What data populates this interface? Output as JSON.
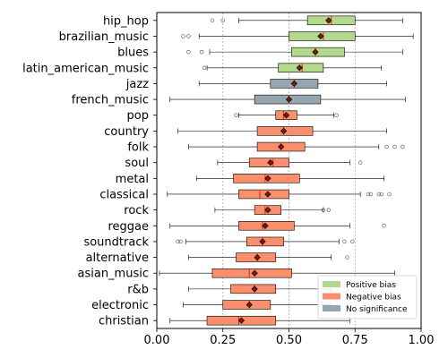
{
  "chart_data": {
    "type": "boxplot",
    "orientation": "horizontal",
    "title": "",
    "xlabel": "",
    "ylabel": "",
    "xlim": [
      0,
      1
    ],
    "xticks": [
      0,
      0.25,
      0.5,
      0.75,
      1
    ],
    "xtick_labels": [
      "0.00",
      "0.25",
      "0.50",
      "0.75",
      "1.00"
    ],
    "reference_lines": [
      0.25,
      0.5,
      0.75
    ],
    "legend": {
      "placement": "lower-right",
      "entries": [
        {
          "label": "Positive bias",
          "color": "#b3d98c"
        },
        {
          "label": "Negative bias",
          "color": "#fa8f6e"
        },
        {
          "label": "No significance",
          "color": "#95a6b0"
        }
      ]
    },
    "colors": {
      "positive": "#b3d98c",
      "negative": "#fa8f6e",
      "none": "#95a6b0",
      "median": "#d62728",
      "mean": "#7a1a0e"
    },
    "categories": [
      {
        "name": "hip_hop",
        "bias": "positive",
        "whisker_low": 0.31,
        "q1": 0.57,
        "median": 0.66,
        "q3": 0.75,
        "whisker_high": 0.93,
        "mean": 0.65,
        "outliers": [
          0.21,
          0.25
        ]
      },
      {
        "name": "brazilian_music",
        "bias": "positive",
        "whisker_low": 0.16,
        "q1": 0.5,
        "median": 0.63,
        "q3": 0.75,
        "whisker_high": 0.97,
        "mean": 0.62,
        "outliers": [
          0.1,
          0.12
        ]
      },
      {
        "name": "blues",
        "bias": "positive",
        "whisker_low": 0.2,
        "q1": 0.51,
        "median": 0.6,
        "q3": 0.71,
        "whisker_high": 0.93,
        "mean": 0.6,
        "outliers": [
          0.12,
          0.17
        ]
      },
      {
        "name": "latin_american_music",
        "bias": "positive",
        "whisker_low": 0.19,
        "q1": 0.46,
        "median": 0.55,
        "q3": 0.63,
        "whisker_high": 0.85,
        "mean": 0.54,
        "outliers": [
          0.18
        ]
      },
      {
        "name": "jazz",
        "bias": "none",
        "whisker_low": 0.16,
        "q1": 0.43,
        "median": 0.52,
        "q3": 0.61,
        "whisker_high": 0.87,
        "mean": 0.52,
        "outliers": []
      },
      {
        "name": "french_music",
        "bias": "none",
        "whisker_low": 0.05,
        "q1": 0.37,
        "median": 0.5,
        "q3": 0.62,
        "whisker_high": 0.94,
        "mean": 0.5,
        "outliers": []
      },
      {
        "name": "pop",
        "bias": "negative",
        "whisker_low": 0.31,
        "q1": 0.45,
        "median": 0.48,
        "q3": 0.53,
        "whisker_high": 0.67,
        "mean": 0.49,
        "outliers": [
          0.3,
          0.68
        ]
      },
      {
        "name": "country",
        "bias": "negative",
        "whisker_low": 0.08,
        "q1": 0.38,
        "median": 0.48,
        "q3": 0.59,
        "whisker_high": 0.87,
        "mean": 0.48,
        "outliers": []
      },
      {
        "name": "folk",
        "bias": "negative",
        "whisker_low": 0.12,
        "q1": 0.38,
        "median": 0.47,
        "q3": 0.56,
        "whisker_high": 0.84,
        "mean": 0.47,
        "outliers": [
          0.87,
          0.9,
          0.93
        ]
      },
      {
        "name": "soul",
        "bias": "negative",
        "whisker_low": 0.23,
        "q1": 0.35,
        "median": 0.44,
        "q3": 0.5,
        "whisker_high": 0.73,
        "mean": 0.43,
        "outliers": [
          0.77
        ]
      },
      {
        "name": "metal",
        "bias": "negative",
        "whisker_low": 0.15,
        "q1": 0.29,
        "median": 0.41,
        "q3": 0.54,
        "whisker_high": 0.86,
        "mean": 0.42,
        "outliers": []
      },
      {
        "name": "classical",
        "bias": "negative",
        "whisker_low": 0.04,
        "q1": 0.31,
        "median": 0.39,
        "q3": 0.5,
        "whisker_high": 0.77,
        "mean": 0.42,
        "outliers": [
          0.8,
          0.81,
          0.84,
          0.85,
          0.88
        ]
      },
      {
        "name": "rock",
        "bias": "negative",
        "whisker_low": 0.22,
        "q1": 0.37,
        "median": 0.41,
        "q3": 0.47,
        "whisker_high": 0.63,
        "mean": 0.42,
        "outliers": [
          0.63,
          0.65
        ]
      },
      {
        "name": "reggae",
        "bias": "negative",
        "whisker_low": 0.05,
        "q1": 0.31,
        "median": 0.4,
        "q3": 0.52,
        "whisker_high": 0.73,
        "mean": 0.41,
        "outliers": [
          0.86
        ]
      },
      {
        "name": "soundtrack",
        "bias": "negative",
        "whisker_low": 0.11,
        "q1": 0.34,
        "median": 0.4,
        "q3": 0.48,
        "whisker_high": 0.69,
        "mean": 0.4,
        "outliers": [
          0.08,
          0.09,
          0.71,
          0.74
        ]
      },
      {
        "name": "alternative",
        "bias": "negative",
        "whisker_low": 0.12,
        "q1": 0.3,
        "median": 0.38,
        "q3": 0.45,
        "whisker_high": 0.66,
        "mean": 0.38,
        "outliers": [
          0.72
        ]
      },
      {
        "name": "asian_music",
        "bias": "negative",
        "whisker_low": 0.01,
        "q1": 0.21,
        "median": 0.35,
        "q3": 0.51,
        "whisker_high": 0.9,
        "mean": 0.37,
        "outliers": []
      },
      {
        "name": "r&b",
        "bias": "negative",
        "whisker_low": 0.12,
        "q1": 0.28,
        "median": 0.37,
        "q3": 0.45,
        "whisker_high": 0.66,
        "mean": 0.37,
        "outliers": []
      },
      {
        "name": "electronic",
        "bias": "negative",
        "whisker_low": 0.1,
        "q1": 0.25,
        "median": 0.35,
        "q3": 0.43,
        "whisker_high": 0.66,
        "mean": 0.35,
        "outliers": []
      },
      {
        "name": "christian",
        "bias": "negative",
        "whisker_low": 0.05,
        "q1": 0.19,
        "median": 0.31,
        "q3": 0.45,
        "whisker_high": 0.73,
        "mean": 0.32,
        "outliers": []
      }
    ]
  }
}
